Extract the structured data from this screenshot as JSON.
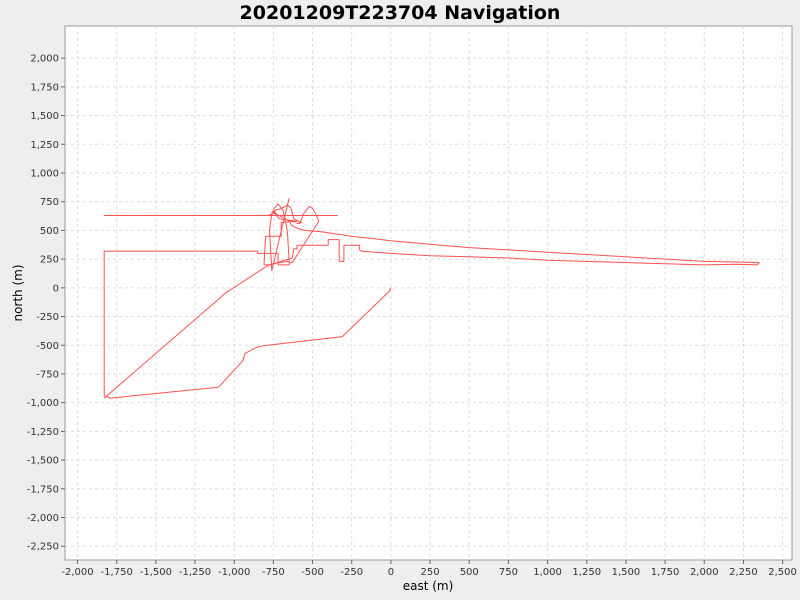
{
  "chart_data": {
    "type": "line",
    "title": "20201209T223704 Navigation",
    "xlabel": "east (m)",
    "ylabel": "north (m)",
    "xlim": [
      -2080,
      2560
    ],
    "ylim": [
      -2370,
      2280
    ],
    "xticks": [
      -2000,
      -1750,
      -1500,
      -1250,
      -1000,
      -750,
      -500,
      -250,
      0,
      250,
      500,
      750,
      1000,
      1250,
      1500,
      1750,
      2000,
      2250,
      2500
    ],
    "xtick_labels": [
      "-2,000",
      "-1,750",
      "-1,500",
      "-1,250",
      "-1,000",
      "-750",
      "-500",
      "-250",
      "0",
      "250",
      "500",
      "750",
      "1,000",
      "1,250",
      "1,500",
      "1,750",
      "2,000",
      "2,250",
      "2,500"
    ],
    "yticks": [
      2000,
      1750,
      1500,
      1250,
      1000,
      750,
      500,
      250,
      0,
      -250,
      -500,
      -750,
      -1000,
      -1250,
      -1500,
      -1750,
      -2000,
      -2250
    ],
    "ytick_labels": [
      "2,000",
      "1,750",
      "1,500",
      "1,250",
      "1,000",
      "750",
      "500",
      "250",
      "0",
      "-250",
      "-500",
      "-750",
      "-1,000",
      "-1,250",
      "-1,500",
      "-1,750",
      "-2,000",
      "-2,250"
    ],
    "grid": true,
    "legend": "none",
    "series": [
      {
        "color": "#ff5050",
        "x": [
          0,
          -10,
          -310,
          -815,
          -860,
          -930,
          -945,
          -1100,
          -1790,
          -1830,
          -1830,
          -1830,
          -1830,
          -1830,
          -850,
          -850,
          -720,
          -720,
          -650,
          -650,
          -630,
          -470,
          -460,
          -475,
          -500,
          -520,
          -560,
          -580,
          -600,
          -570,
          -620,
          -640,
          -660,
          -700,
          -730,
          -750,
          -710,
          -600,
          -700,
          -700,
          -800,
          -810,
          -770,
          -700,
          -630,
          -620,
          -600,
          -600,
          -510,
          -400,
          -400,
          -330,
          -330,
          -300,
          -300,
          -200,
          -200,
          -190,
          0,
          250,
          500,
          750,
          1000,
          1250,
          1500,
          1750,
          2000,
          2200,
          2340,
          2350,
          2200,
          2000,
          1750,
          1500,
          1250,
          1000,
          750,
          500,
          250,
          0,
          -250,
          -450,
          -550,
          -600,
          -630,
          -650,
          -700,
          -730,
          -740,
          -760,
          -790,
          -1830,
          -1830,
          -1830,
          -340
        ],
        "y": [
          0,
          -30,
          -425,
          -505,
          -520,
          -570,
          -635,
          -865,
          -960,
          -940,
          -620,
          -330,
          -90,
          320,
          320,
          300,
          300,
          200,
          200,
          220,
          220,
          560,
          580,
          630,
          690,
          710,
          640,
          560,
          560,
          570,
          600,
          700,
          720,
          690,
          680,
          660,
          600,
          580,
          570,
          450,
          450,
          200,
          200,
          230,
          260,
          340,
          340,
          370,
          370,
          370,
          420,
          420,
          230,
          230,
          370,
          370,
          330,
          320,
          300,
          280,
          270,
          260,
          240,
          230,
          220,
          210,
          200,
          205,
          200,
          220,
          225,
          230,
          250,
          270,
          290,
          310,
          330,
          350,
          380,
          410,
          450,
          490,
          500,
          520,
          540,
          580,
          620,
          640,
          660,
          640,
          630,
          630,
          630,
          630,
          630
        ]
      },
      {
        "color": "#ff5050",
        "x": [
          -1830,
          -1050,
          -780,
          -720,
          -650,
          -660,
          -670,
          -690,
          -720,
          -740,
          -760,
          -775,
          -760,
          -650
        ],
        "y": [
          -960,
          -40,
          200,
          220,
          230,
          480,
          560,
          680,
          730,
          700,
          650,
          500,
          150,
          780
        ]
      }
    ]
  }
}
